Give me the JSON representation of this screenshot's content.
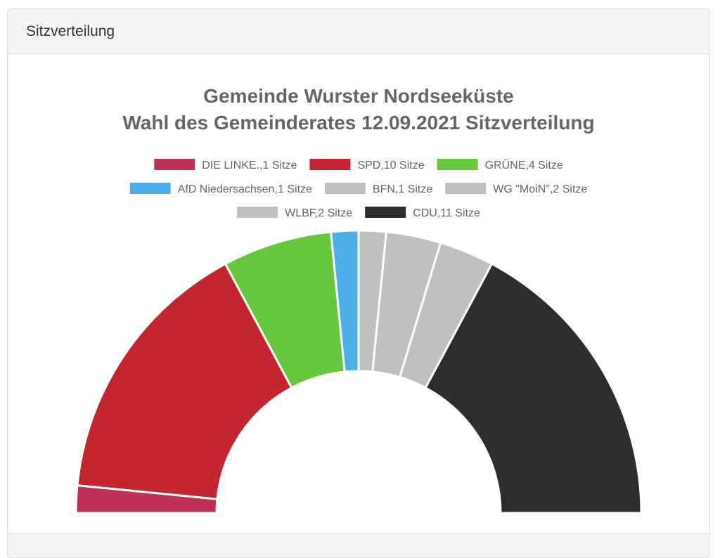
{
  "panel": {
    "heading": "Sitzverteilung"
  },
  "chart_data": {
    "type": "pie",
    "variant": "half-doughnut",
    "title": [
      "Gemeinde Wurster Nordseeküste",
      "Wahl des Gemeinderates 12.09.2021 Sitzverteilung"
    ],
    "legend_position": "top",
    "labels": [
      "DIE LINKE.,1 Sitze",
      "SPD,10 Sitze",
      "GRÜNE,4 Sitze",
      "AfD Niedersachsen,1 Sitze",
      "BFN,1 Sitze",
      "WG \"MoiN\",2 Sitze",
      "WLBF,2 Sitze",
      "CDU,11 Sitze"
    ],
    "values": [
      1,
      10,
      4,
      1,
      1,
      2,
      2,
      11
    ],
    "colors": [
      "#be3355",
      "#c3262f",
      "#66c83c",
      "#4eaee6",
      "#c0c0c0",
      "#c0c0c0",
      "#c0c0c0",
      "#2f2d2c"
    ]
  }
}
